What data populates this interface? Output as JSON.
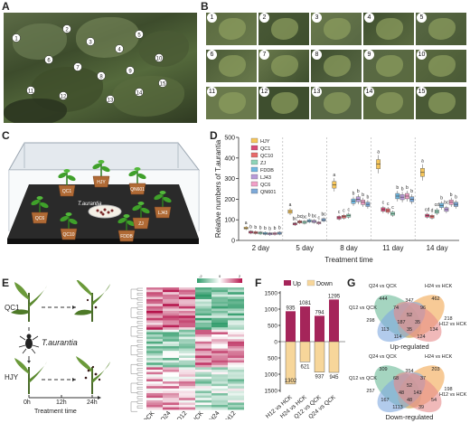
{
  "panels": {
    "a": "A",
    "b": "B",
    "c": "C",
    "d": "D",
    "e": "E",
    "f": "F",
    "g": "G"
  },
  "panel_a": {
    "markers": [
      "1",
      "2",
      "3",
      "4",
      "5",
      "6",
      "7",
      "8",
      "9",
      "10",
      "11",
      "12",
      "13",
      "14",
      "15"
    ]
  },
  "panel_b": {
    "thumbs": [
      "1",
      "2",
      "3",
      "4",
      "5",
      "6",
      "7",
      "8",
      "9",
      "10",
      "11",
      "12",
      "13",
      "14",
      "15"
    ]
  },
  "panel_c": {
    "center_label": "T.aurantia",
    "pots": [
      "QC1",
      "HJY",
      "QN601",
      "QC6",
      "LJ43",
      "QC10",
      "FDDB",
      "ZJ"
    ]
  },
  "chart_data": [
    {
      "type": "box",
      "ylabel": "Relative numbers of T.aurantia",
      "xlabel": "Treatment time",
      "categories": [
        "2 day",
        "5 day",
        "8 day",
        "11 day",
        "14 day"
      ],
      "ylim": [
        0,
        500
      ],
      "yticks": [
        "0",
        "100",
        "200",
        "300",
        "400",
        "500"
      ],
      "legend": [
        "HJY",
        "QC1",
        "QC10",
        "ZJ",
        "FDDB",
        "LJ43",
        "QC6",
        "QN601"
      ],
      "colors": [
        "#f6c65b",
        "#d84a78",
        "#e86a6a",
        "#8ed4b8",
        "#6fb7e0",
        "#b89ad8",
        "#f2a0c8",
        "#7ea9d8"
      ],
      "medians": [
        [
          60,
          40,
          38,
          36,
          34,
          32,
          33,
          35
        ],
        [
          140,
          80,
          90,
          88,
          95,
          92,
          85,
          100
        ],
        [
          270,
          110,
          115,
          120,
          190,
          200,
          185,
          175
        ],
        [
          370,
          150,
          145,
          130,
          215,
          210,
          215,
          200
        ],
        [
          330,
          120,
          115,
          140,
          170,
          150,
          185,
          175
        ]
      ],
      "sig": [
        [
          "a",
          "b",
          "b",
          "b",
          "b",
          "b",
          "b",
          "b"
        ],
        [
          "a",
          "bc",
          "bc",
          "bc",
          "b",
          "bc",
          "c",
          "bc"
        ],
        [
          "a",
          "c",
          "c",
          "c",
          "b",
          "b",
          "b",
          "b"
        ],
        [
          "a",
          "c",
          "c",
          "c",
          "b",
          "b",
          "b",
          "b"
        ],
        [
          "a",
          "cd",
          "d",
          "cd",
          "b",
          "bc",
          "b",
          "b"
        ]
      ]
    },
    {
      "type": "bar",
      "legend": [
        "Up",
        "Down"
      ],
      "colors": [
        "#a5255a",
        "#f7d69a"
      ],
      "categories": [
        "H12 vs HCK",
        "H24 vs HCK",
        "Q12 vs QCK",
        "Q24 vs QCK"
      ],
      "up": [
        935,
        1081,
        794,
        1295
      ],
      "down": [
        1302,
        621,
        937,
        945
      ],
      "yticks_top": [
        "1500",
        "1000",
        "500",
        "0"
      ],
      "yticks_bottom": [
        "500",
        "1000",
        "1500"
      ]
    }
  ],
  "panel_e": {
    "labels": {
      "qc1": "QC1",
      "hjy": "HJY",
      "insect": "T.aurantia",
      "t0": "0h",
      "t12": "12h",
      "t24": "24h",
      "xlabel": "Treatment time"
    },
    "heatmap_cols": [
      "QCK",
      "Q24",
      "Q12",
      "HCK",
      "H24",
      "H12"
    ],
    "scale": [
      "-2",
      "0",
      "2"
    ]
  },
  "panel_g": {
    "up": {
      "title": "Up-regulated",
      "sets": [
        "Q24 vs QCK",
        "H24 vs HCK",
        "Q12 vs QCK",
        "H12 vs HCK"
      ],
      "nums": [
        "444",
        "462",
        "298",
        "218",
        "347",
        "74",
        "96",
        "113",
        "52",
        "134",
        "187",
        "35",
        "114",
        "35",
        "124"
      ]
    },
    "down": {
      "title": "Down-regulated",
      "sets": [
        "Q24 vs QCK",
        "H24 vs HCK",
        "Q12 vs QCK",
        "H12 vs HCK"
      ],
      "nums": [
        "309",
        "203",
        "257",
        "198",
        "354",
        "68",
        "37",
        "167",
        "52",
        "54",
        "48",
        "143",
        "1113",
        "48",
        "39"
      ]
    }
  }
}
